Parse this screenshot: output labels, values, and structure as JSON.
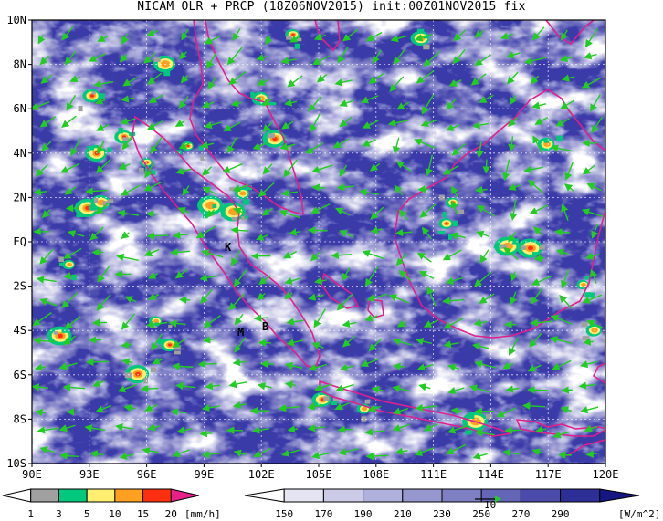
{
  "title": "NICAM OLR + PRCP (18Z06NOV2015) init:00Z01NOV2015 fix",
  "lat_labels": [
    "10N",
    "8N",
    "6N",
    "4N",
    "2N",
    "EQ",
    "2S",
    "4S",
    "6S",
    "8S",
    "10S"
  ],
  "lon_labels": [
    "90E",
    "93E",
    "96E",
    "99E",
    "102E",
    "105E",
    "108E",
    "111E",
    "114E",
    "117E",
    "120E"
  ],
  "place_labels": {
    "k": "K",
    "m": "M",
    "b": "B"
  },
  "prcp_legend": {
    "ticks": [
      "1",
      "3",
      "5",
      "10",
      "15",
      "20"
    ],
    "unit": "[mm/h]",
    "colors": [
      "#ffffff",
      "#a0a0a0",
      "#00c87c",
      "#ffef70",
      "#ffa020",
      "#ff3010",
      "#e8208c"
    ]
  },
  "olr_legend": {
    "ticks": [
      "150",
      "170",
      "190",
      "210",
      "230",
      "250",
      "270",
      "290"
    ],
    "unit": "[W/m^2]",
    "arrow_label": "10",
    "colors": [
      "#ffffff",
      "#e4e4f2",
      "#cbcbe8",
      "#b0b0dc",
      "#9797cf",
      "#7f7fc3",
      "#6565b8",
      "#4b4bab",
      "#2e2e97",
      "#161682"
    ]
  },
  "colors": {
    "coast": "#e0208c",
    "wind": "#22cc22",
    "grid": "#ffffff",
    "ocean": "#3a3aa8"
  }
}
